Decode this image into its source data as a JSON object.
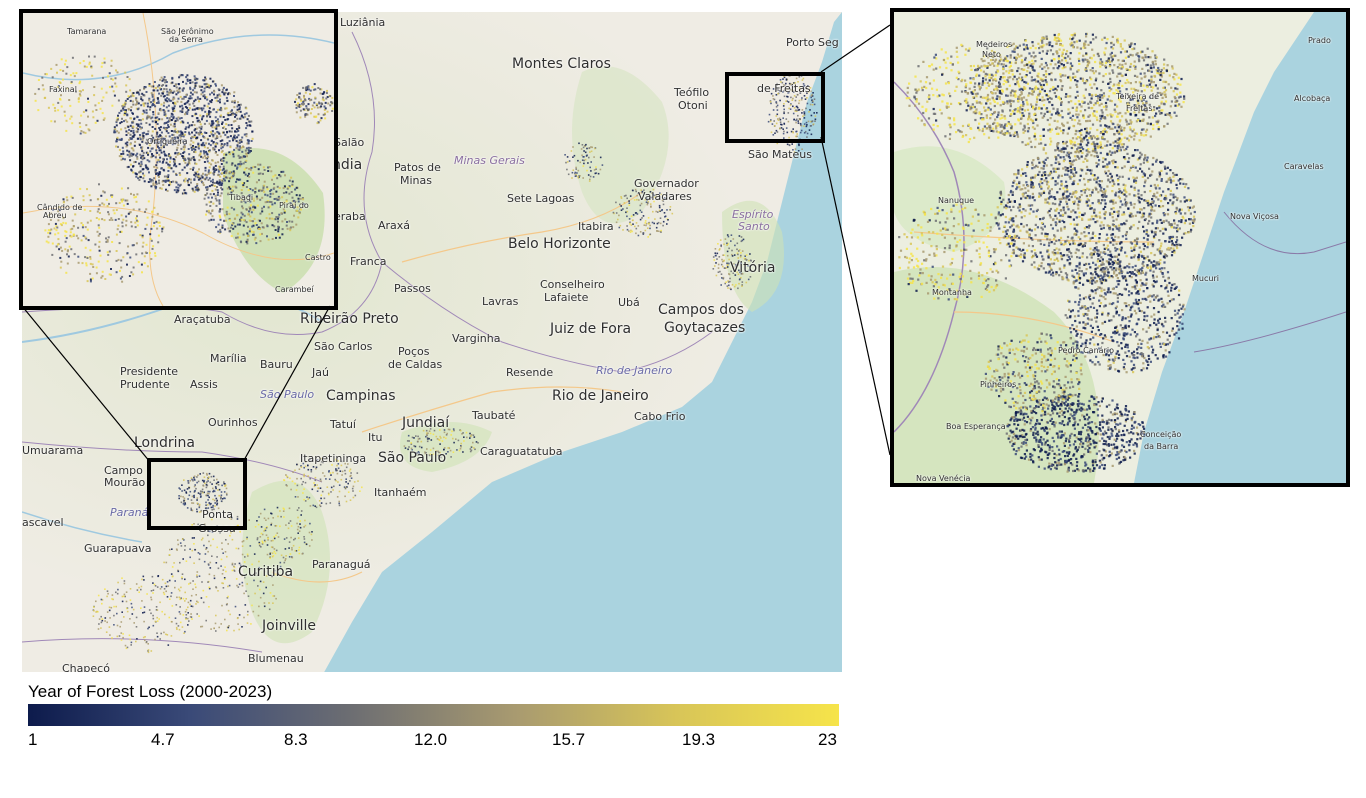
{
  "legend": {
    "title": "Year of Forest Loss (2000-2023)",
    "ticks": [
      "1",
      "4.7",
      "8.3",
      "12.0",
      "15.7",
      "19.3",
      "23"
    ],
    "min": 1,
    "max": 23,
    "colormap": [
      "#0d1b4c",
      "#3a4a78",
      "#6d6e72",
      "#a89a70",
      "#d8c558",
      "#f6e44a"
    ]
  },
  "colors": {
    "ocean": "#aad3df",
    "land": "#efece4",
    "forest_green": "#c8dfab",
    "border": "#a088b8",
    "road": "#f4c88a"
  },
  "main_map": {
    "cities": [
      {
        "name": "Luziânia",
        "cls": "",
        "ref": "luziania"
      },
      {
        "name": "Montes Claros",
        "cls": "big",
        "ref": "montes-claros"
      },
      {
        "name": "Porto Seg",
        "cls": "",
        "ref": "porto-seguro"
      },
      {
        "name": "Teófilo",
        "cls": "",
        "ref": "teofilo"
      },
      {
        "name": "Otoni",
        "cls": "",
        "ref": "otoni"
      },
      {
        "name": "de Freitas",
        "cls": "",
        "ref": "de-freitas"
      },
      {
        "name": "Salão",
        "cls": "",
        "ref": "salao"
      },
      {
        "name": "ndia",
        "cls": "big",
        "ref": "ndia"
      },
      {
        "name": "Patos de",
        "cls": "",
        "ref": "patos"
      },
      {
        "name": "Minas",
        "cls": "",
        "ref": "minas"
      },
      {
        "name": "Minas Gerais",
        "cls": "state",
        "ref": "minas-gerais"
      },
      {
        "name": "São Mateus",
        "cls": "",
        "ref": "sao-mateus"
      },
      {
        "name": "Governador",
        "cls": "",
        "ref": "governador"
      },
      {
        "name": "Valadares",
        "cls": "",
        "ref": "valadares"
      },
      {
        "name": "Sete Lagoas",
        "cls": "",
        "ref": "sete-lagoas"
      },
      {
        "name": "eraba",
        "cls": "",
        "ref": "eraba"
      },
      {
        "name": "Araxá",
        "cls": "",
        "ref": "araxa"
      },
      {
        "name": "Itabira",
        "cls": "",
        "ref": "itabira"
      },
      {
        "name": "Espírito",
        "cls": "state",
        "ref": "espirito"
      },
      {
        "name": "Santo",
        "cls": "state",
        "ref": "santo"
      },
      {
        "name": "Belo Horizonte",
        "cls": "big",
        "ref": "belo-horizonte"
      },
      {
        "name": "Franca",
        "cls": "",
        "ref": "franca"
      },
      {
        "name": "Vitória",
        "cls": "big",
        "ref": "vitoria"
      },
      {
        "name": "Conselheiro",
        "cls": "",
        "ref": "conselheiro"
      },
      {
        "name": "Lafaiete",
        "cls": "",
        "ref": "lafaiete"
      },
      {
        "name": "Passos",
        "cls": "",
        "ref": "passos"
      },
      {
        "name": "Lavras",
        "cls": "",
        "ref": "lavras"
      },
      {
        "name": "Ubá",
        "cls": "",
        "ref": "uba"
      },
      {
        "name": "Campos dos",
        "cls": "big",
        "ref": "campos"
      },
      {
        "name": "Goytacazes",
        "cls": "big",
        "ref": "goytacazes"
      },
      {
        "name": "Araçatuba",
        "cls": "",
        "ref": "aracatuba"
      },
      {
        "name": "Ribeirão Preto",
        "cls": "big",
        "ref": "ribeirao-preto"
      },
      {
        "name": "Juiz de Fora",
        "cls": "big",
        "ref": "juiz-de-fora"
      },
      {
        "name": "São Carlos",
        "cls": "",
        "ref": "sao-carlos"
      },
      {
        "name": "Varginha",
        "cls": "",
        "ref": "varginha"
      },
      {
        "name": "Poços",
        "cls": "",
        "ref": "pocos"
      },
      {
        "name": "de Caldas",
        "cls": "",
        "ref": "caldas"
      },
      {
        "name": "Marília",
        "cls": "",
        "ref": "marilia"
      },
      {
        "name": "Bauru",
        "cls": "",
        "ref": "bauru"
      },
      {
        "name": "Presidente",
        "cls": "",
        "ref": "presidente"
      },
      {
        "name": "Prudente",
        "cls": "",
        "ref": "prudente"
      },
      {
        "name": "Assis",
        "cls": "",
        "ref": "assis"
      },
      {
        "name": "Jaú",
        "cls": "",
        "ref": "jau"
      },
      {
        "name": "Resende",
        "cls": "",
        "ref": "resende"
      },
      {
        "name": "Rio de Janeiro",
        "cls": "state blue",
        "ref": "rio-state"
      },
      {
        "name": "São Paulo",
        "cls": "state blue",
        "ref": "sp-state"
      },
      {
        "name": "Campinas",
        "cls": "big",
        "ref": "campinas"
      },
      {
        "name": "Rio de Janeiro",
        "cls": "big",
        "ref": "rio-city"
      },
      {
        "name": "Ourinhos",
        "cls": "",
        "ref": "ourinhos"
      },
      {
        "name": "Tatuí",
        "cls": "",
        "ref": "tatui"
      },
      {
        "name": "Jundiaí",
        "cls": "big",
        "ref": "jundiai"
      },
      {
        "name": "Taubaté",
        "cls": "",
        "ref": "taubate"
      },
      {
        "name": "Cabo Frio",
        "cls": "",
        "ref": "cabo-frio"
      },
      {
        "name": "Itu",
        "cls": "",
        "ref": "itu"
      },
      {
        "name": "Londrina",
        "cls": "big",
        "ref": "londrina"
      },
      {
        "name": "Umuarama",
        "cls": "",
        "ref": "umuarama"
      },
      {
        "name": "Itapetininga",
        "cls": "",
        "ref": "itapetininga"
      },
      {
        "name": "São Paulo",
        "cls": "big",
        "ref": "sao-paulo"
      },
      {
        "name": "Caraguatatuba",
        "cls": "",
        "ref": "caraguatatuba"
      },
      {
        "name": "Campo",
        "cls": "",
        "ref": "campo"
      },
      {
        "name": "Mourão",
        "cls": "",
        "ref": "mourao"
      },
      {
        "name": "Itanhaém",
        "cls": "",
        "ref": "itanhaem"
      },
      {
        "name": "Paraná",
        "cls": "state blue",
        "ref": "parana"
      },
      {
        "name": "Ponta",
        "cls": "",
        "ref": "ponta"
      },
      {
        "name": "Grossa",
        "cls": "",
        "ref": "grossa"
      },
      {
        "name": "ascavel",
        "cls": "",
        "ref": "cascavel"
      },
      {
        "name": "Guarapuava",
        "cls": "",
        "ref": "guarapuava"
      },
      {
        "name": "Curitiba",
        "cls": "big",
        "ref": "curitiba"
      },
      {
        "name": "Paranaguá",
        "cls": "",
        "ref": "paranagua"
      },
      {
        "name": "Joinville",
        "cls": "big",
        "ref": "joinville"
      },
      {
        "name": "Blumenau",
        "cls": "",
        "ref": "blumenau"
      },
      {
        "name": "Chapecó",
        "cls": "",
        "ref": "chapeco"
      }
    ]
  },
  "left_inset": {
    "labels": [
      {
        "name": "Tamarana",
        "ref": "tamarana"
      },
      {
        "name": "São Jerônimo",
        "ref": "sao-jeronimo"
      },
      {
        "name": "da Serra",
        "ref": "da-serra"
      },
      {
        "name": "Faxinal",
        "ref": "faxinal"
      },
      {
        "name": "Ortigueira",
        "ref": "ortigueira"
      },
      {
        "name": "Cândido de",
        "ref": "candido"
      },
      {
        "name": "Abreu",
        "ref": "abreu"
      },
      {
        "name": "Tibagi",
        "ref": "tibagi"
      },
      {
        "name": "Piraí do",
        "ref": "pirai"
      },
      {
        "name": "Castro",
        "ref": "castro"
      },
      {
        "name": "Carambeí",
        "ref": "carambei"
      }
    ]
  },
  "zoom_panel": {
    "labels": [
      {
        "name": "Medeiros",
        "ref": "medeiros"
      },
      {
        "name": "Neto",
        "ref": "neto"
      },
      {
        "name": "Prado",
        "ref": "prado"
      },
      {
        "name": "Teixeira de",
        "ref": "teixeira"
      },
      {
        "name": "Freitas",
        "ref": "freitas"
      },
      {
        "name": "Alcobaça",
        "ref": "alcobaca"
      },
      {
        "name": "Caravelas",
        "ref": "caravelas"
      },
      {
        "name": "Nanuque",
        "ref": "nanuque"
      },
      {
        "name": "Nova Viçosa",
        "ref": "nova-vicosa"
      },
      {
        "name": "Mucuri",
        "ref": "mucuri"
      },
      {
        "name": "Montanha",
        "ref": "montanha"
      },
      {
        "name": "Pedro Canário",
        "ref": "pedro-canario"
      },
      {
        "name": "Pinheiros",
        "ref": "pinheiros"
      },
      {
        "name": "Boa Esperança",
        "ref": "boa-esperanca"
      },
      {
        "name": "Conceição",
        "ref": "conceicao"
      },
      {
        "name": "da Barra",
        "ref": "da-barra"
      },
      {
        "name": "Nova Venécia",
        "ref": "nova-venecia"
      }
    ]
  }
}
